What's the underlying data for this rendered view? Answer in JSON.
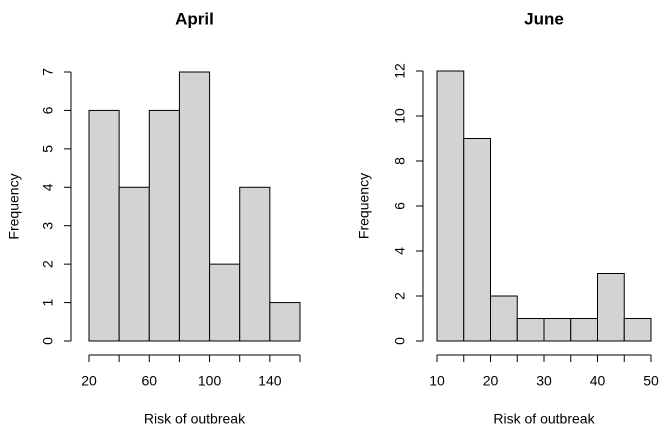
{
  "chart_data": [
    {
      "type": "histogram",
      "title": "April",
      "xlabel": "Risk of outbreak",
      "ylabel": "Frequency",
      "bins": [
        20,
        40,
        60,
        80,
        100,
        120,
        140,
        160
      ],
      "values": [
        6,
        4,
        6,
        7,
        2,
        4,
        1
      ],
      "color": "#d3d3d3",
      "xlim": [
        20,
        160
      ],
      "xticks": [
        20,
        60,
        100,
        140
      ],
      "ylim": [
        0,
        7
      ],
      "yticks": [
        0,
        1,
        2,
        3,
        4,
        5,
        6,
        7
      ]
    },
    {
      "type": "histogram",
      "title": "June",
      "xlabel": "Risk of outbreak",
      "ylabel": "Frequency",
      "bins": [
        10,
        15,
        20,
        25,
        30,
        35,
        40,
        45,
        50
      ],
      "values": [
        12,
        9,
        2,
        1,
        1,
        1,
        3,
        1
      ],
      "color": "#d3d3d3",
      "xlim": [
        10,
        50
      ],
      "xticks": [
        10,
        20,
        30,
        40,
        50
      ],
      "ylim": [
        0,
        12
      ],
      "yticks": [
        0,
        2,
        4,
        6,
        8,
        10,
        12
      ]
    }
  ]
}
